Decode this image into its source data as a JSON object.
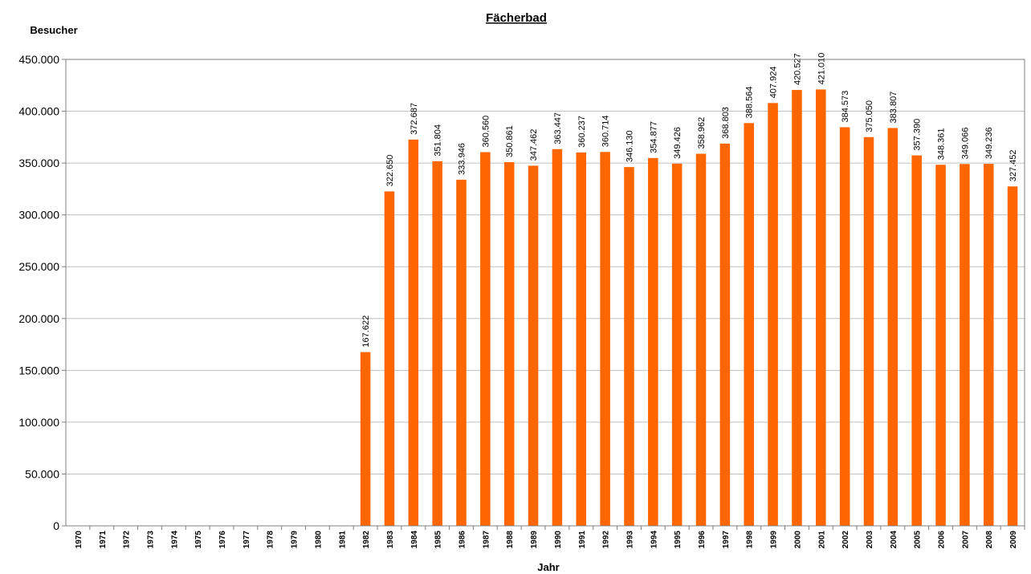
{
  "chart_data": {
    "type": "bar",
    "title": "Fächerbad",
    "ylabel": "Besucher",
    "xlabel": "Jahr",
    "ylim": [
      0,
      450000
    ],
    "y_ticks": [
      "0",
      "50.000",
      "100.000",
      "150.000",
      "200.000",
      "250.000",
      "300.000",
      "350.000",
      "400.000",
      "450.000"
    ],
    "grid": "horizontal",
    "bar_color": "#FF6600",
    "categories": [
      "1970",
      "1971",
      "1972",
      "1973",
      "1974",
      "1975",
      "1976",
      "1977",
      "1978",
      "1979",
      "1980",
      "1981",
      "1982",
      "1983",
      "1984",
      "1985",
      "1986",
      "1987",
      "1988",
      "1989",
      "1990",
      "1991",
      "1992",
      "1993",
      "1994",
      "1995",
      "1996",
      "1997",
      "1998",
      "1999",
      "2000",
      "2001",
      "2002",
      "2003",
      "2004",
      "2005",
      "2006",
      "2007",
      "2008",
      "2009"
    ],
    "values": [
      0,
      0,
      0,
      0,
      0,
      0,
      0,
      0,
      0,
      0,
      0,
      0,
      167622,
      322650,
      372687,
      351804,
      333946,
      360560,
      350861,
      347462,
      363447,
      360237,
      360714,
      346130,
      354877,
      349426,
      358962,
      368803,
      388564,
      407924,
      420527,
      421010,
      384573,
      375050,
      383807,
      357390,
      348361,
      349066,
      349236,
      327452
    ],
    "labels": [
      "",
      "",
      "",
      "",
      "",
      "",
      "",
      "",
      "",
      "",
      "",
      "",
      "167.622",
      "322.650",
      "372.687",
      "351.804",
      "333.946",
      "360.560",
      "350.861",
      "347.462",
      "363.447",
      "360.237",
      "360.714",
      "346.130",
      "354.877",
      "349.426",
      "358.962",
      "368.803",
      "388.564",
      "407.924",
      "420.527",
      "421.010",
      "384.573",
      "375.050",
      "383.807",
      "357.390",
      "348.361",
      "349.066",
      "349.236",
      "327.452"
    ]
  }
}
